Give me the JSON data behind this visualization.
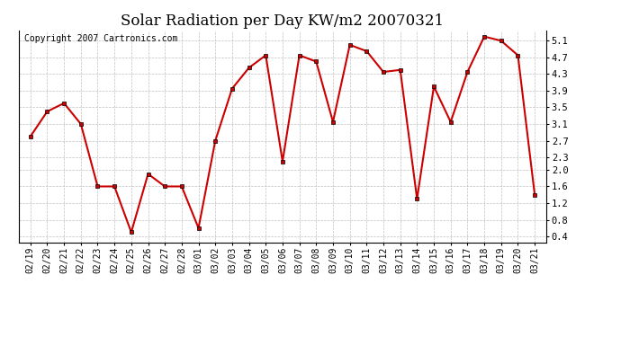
{
  "title": "Solar Radiation per Day KW/m2 20070321",
  "copyright_text": "Copyright 2007 Cartronics.com",
  "dates": [
    "02/19",
    "02/20",
    "02/21",
    "02/22",
    "02/23",
    "02/24",
    "02/25",
    "02/26",
    "02/27",
    "02/28",
    "03/01",
    "03/02",
    "03/03",
    "03/04",
    "03/05",
    "03/06",
    "03/07",
    "03/08",
    "03/09",
    "03/10",
    "03/11",
    "03/12",
    "03/13",
    "03/14",
    "03/15",
    "03/16",
    "03/17",
    "03/18",
    "03/19",
    "03/20",
    "03/21"
  ],
  "values": [
    2.8,
    3.4,
    3.6,
    3.1,
    1.6,
    1.6,
    0.5,
    1.9,
    1.6,
    1.6,
    0.6,
    2.7,
    3.95,
    4.45,
    4.75,
    2.2,
    4.75,
    4.6,
    3.15,
    5.0,
    4.85,
    4.35,
    4.4,
    1.3,
    4.0,
    3.15,
    4.35,
    5.2,
    5.1,
    4.75,
    1.4
  ],
  "line_color": "#cc0000",
  "marker_size": 3,
  "line_width": 1.5,
  "background_color": "#ffffff",
  "grid_color": "#c0c0c0",
  "yticks": [
    0.4,
    0.8,
    1.2,
    1.6,
    2.0,
    2.3,
    2.7,
    3.1,
    3.5,
    3.9,
    4.3,
    4.7,
    5.1
  ],
  "ylim": [
    0.25,
    5.35
  ],
  "title_fontsize": 12,
  "copyright_fontsize": 7,
  "tick_fontsize": 7,
  "ytick_fontsize": 7.5
}
